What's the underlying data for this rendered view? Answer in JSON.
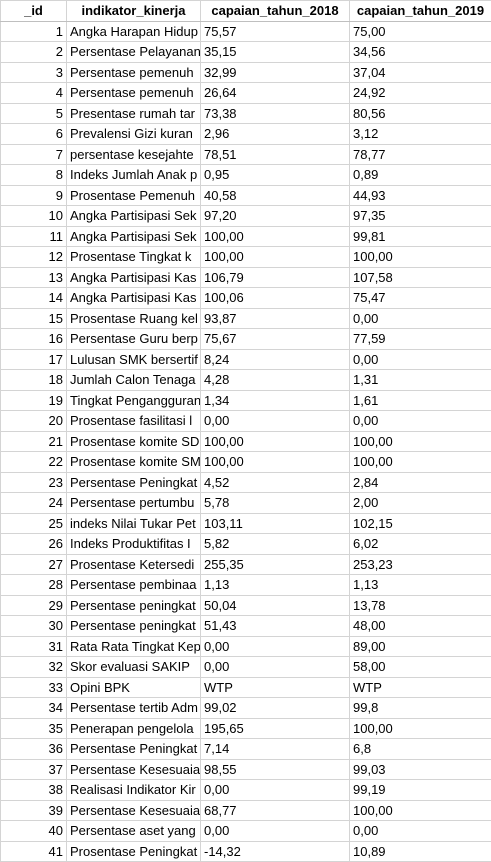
{
  "columns": [
    "_id",
    "indikator_kinerja",
    "capaian_tahun_2018",
    "capaian_tahun_2019"
  ],
  "rows": [
    [
      "1",
      "Angka Harapan Hidup",
      "75,57",
      "75,00"
    ],
    [
      "2",
      "Persentase Pelayanan",
      "35,15",
      "34,56"
    ],
    [
      "3",
      "Persentase pemenuh",
      "32,99",
      "37,04"
    ],
    [
      "4",
      "Persentase pemenuh",
      "26,64",
      "24,92"
    ],
    [
      "5",
      "Presentase rumah tar",
      "73,38",
      "80,56"
    ],
    [
      "6",
      "Prevalensi Gizi kuran",
      "2,96",
      "3,12"
    ],
    [
      "7",
      "persentase kesejahte",
      "78,51",
      "78,77"
    ],
    [
      "8",
      "Indeks Jumlah Anak p",
      "0,95",
      "0,89"
    ],
    [
      "9",
      "Prosentase Pemenuh",
      "40,58",
      "44,93"
    ],
    [
      "10",
      "Angka Partisipasi Sek",
      "97,20",
      "97,35"
    ],
    [
      "11",
      "Angka Partisipasi Sek",
      "100,00",
      "99,81"
    ],
    [
      "12",
      "Prosentase Tingkat k",
      "100,00",
      "100,00"
    ],
    [
      "13",
      "Angka Partisipasi Kas",
      "106,79",
      "107,58"
    ],
    [
      "14",
      "Angka Partisipasi Kas",
      "100,06",
      "75,47"
    ],
    [
      "15",
      "Prosentase Ruang kel",
      "93,87",
      "0,00"
    ],
    [
      "16",
      "Persentase Guru berp",
      "75,67",
      "77,59"
    ],
    [
      "17",
      "Lulusan SMK bersertif",
      "8,24",
      "0,00"
    ],
    [
      "18",
      "Jumlah Calon Tenaga",
      "4,28",
      "1,31"
    ],
    [
      "19",
      "Tingkat Pengangguran",
      "1,34",
      "1,61"
    ],
    [
      "20",
      "Prosentase fasilitasi l",
      "0,00",
      "0,00"
    ],
    [
      "21",
      "Prosentase komite SD",
      "100,00",
      "100,00"
    ],
    [
      "22",
      "Prosentase komite SM",
      "100,00",
      "100,00"
    ],
    [
      "23",
      "Persentase Peningkat",
      "4,52",
      "2,84"
    ],
    [
      "24",
      "Persentase pertumbu",
      "5,78",
      "2,00"
    ],
    [
      "25",
      "indeks Nilai Tukar Pet",
      "103,11",
      "102,15"
    ],
    [
      "26",
      "Indeks Produktifitas I",
      "5,82",
      "6,02"
    ],
    [
      "27",
      "Prosentase Ketersedi",
      "255,35",
      "253,23"
    ],
    [
      "28",
      "Persentase pembinaa",
      "1,13",
      "1,13"
    ],
    [
      "29",
      "Persentase peningkat",
      "50,04",
      "13,78"
    ],
    [
      "30",
      "Persentase peningkat",
      "51,43",
      "48,00"
    ],
    [
      "31",
      "Rata Rata Tingkat Kep",
      "0,00",
      "89,00"
    ],
    [
      "32",
      "Skor evaluasi SAKIP",
      "0,00",
      "58,00"
    ],
    [
      "33",
      "Opini BPK",
      "WTP",
      "WTP"
    ],
    [
      "34",
      "Persentase tertib Adm",
      "99,02",
      "99,8"
    ],
    [
      "35",
      "Penerapan pengelola",
      "195,65",
      "100,00"
    ],
    [
      "36",
      "Persentase Peningkat",
      "7,14",
      "6,8"
    ],
    [
      "37",
      "Persentase Kesesuaia",
      "98,55",
      "99,03"
    ],
    [
      "38",
      "Realisasi Indikator Kir",
      "0,00",
      "99,19"
    ],
    [
      "39",
      "Persentase Kesesuaia",
      "68,77",
      "100,00"
    ],
    [
      "40",
      "Persentase aset yang",
      "0,00",
      "0,00"
    ],
    [
      "41",
      "Prosentase Peningkat",
      "-14,32",
      "10,89"
    ]
  ]
}
